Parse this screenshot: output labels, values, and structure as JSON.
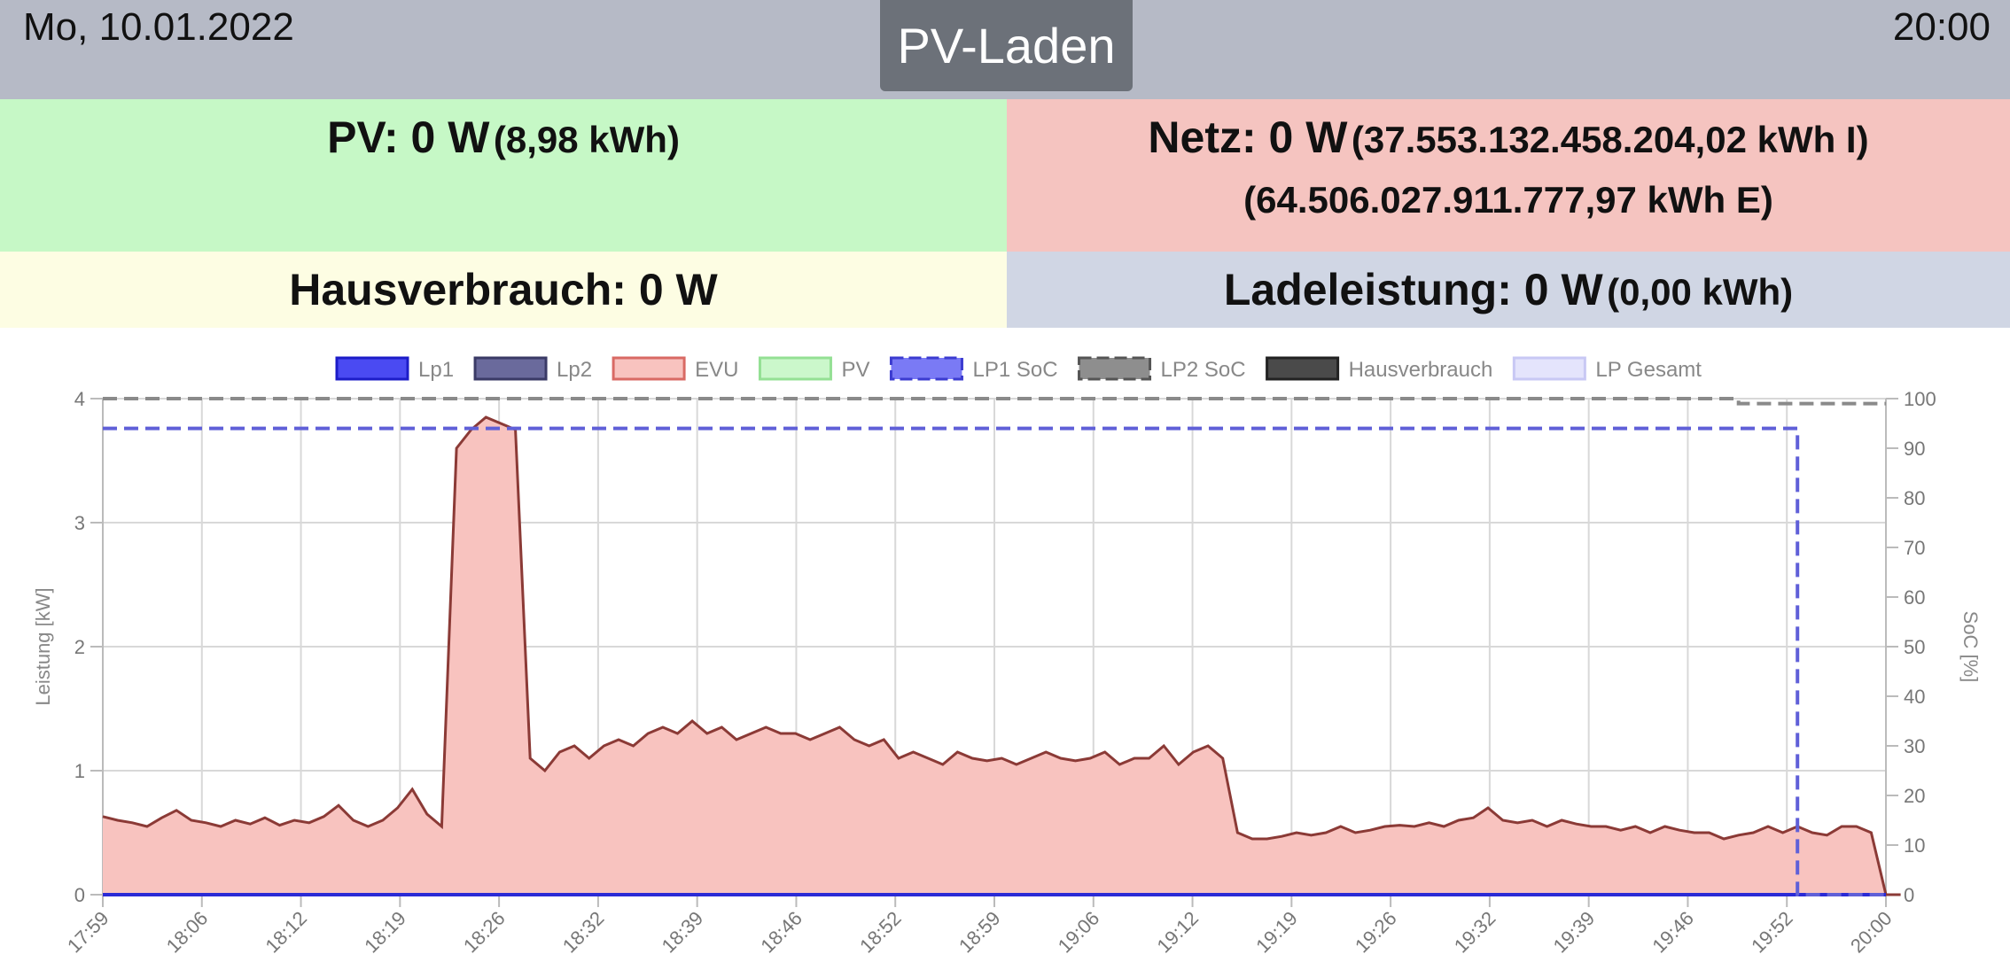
{
  "header": {
    "date": "Mo, 10.01.2022",
    "time": "20:00",
    "mode_button": "PV-Laden"
  },
  "pv": {
    "label": "PV: 0 W",
    "energy": "(8,98 kWh)"
  },
  "grid": {
    "label": "Netz: 0 W",
    "import": "(37.553.132.458.204,02 kWh I)",
    "export": "(64.506.027.911.777,97 kWh E)"
  },
  "house": {
    "label": "Hausverbrauch: 0 W"
  },
  "charging": {
    "label": "Ladeleistung: 0 W",
    "energy": "(0,00 kWh)"
  },
  "colors": {
    "pv_bg": "#c6f8c6",
    "grid_bg": "#f5c4c0",
    "house_bg": "#fdfde3",
    "charge_bg": "#d0d6e4",
    "evu_fill": "#f8c3bf",
    "evu_line": "#8b3a36",
    "lp1": "#2b2bd6",
    "lp2_soc": "#8a8a8a",
    "lp1_soc": "#6060d8"
  },
  "chart_data": {
    "type": "line",
    "legend": [
      {
        "name": "Lp1",
        "fill": "#4a4af2",
        "stroke": "#1c1cc8",
        "dashed": false
      },
      {
        "name": "Lp2",
        "fill": "#6a6a9c",
        "stroke": "#3a3a66",
        "dashed": false
      },
      {
        "name": "EVU",
        "fill": "#f8c3bf",
        "stroke": "#d96a64",
        "dashed": false
      },
      {
        "name": "PV",
        "fill": "#cbf7cb",
        "stroke": "#94e094",
        "dashed": false
      },
      {
        "name": "LP1 SoC",
        "fill": "#7a7af5",
        "stroke": "#3c3cd0",
        "dashed": true
      },
      {
        "name": "LP2 SoC",
        "fill": "#8e8e8e",
        "stroke": "#555555",
        "dashed": true
      },
      {
        "name": "Hausverbrauch",
        "fill": "#4a4a4a",
        "stroke": "#222222",
        "dashed": false
      },
      {
        "name": "LP Gesamt",
        "fill": "#e4e4fc",
        "stroke": "#c8c8f4",
        "dashed": false
      }
    ],
    "legend_position": "top",
    "ylabel": "Leistung [kW]",
    "y2label": "SoC [%]",
    "ylim": [
      0,
      4
    ],
    "y2lim": [
      0,
      100
    ],
    "yticks": [
      "0",
      "1",
      "2",
      "3",
      "4"
    ],
    "y2ticks": [
      "0",
      "10",
      "20",
      "30",
      "40",
      "50",
      "60",
      "70",
      "80",
      "90",
      "100"
    ],
    "x_range": [
      "17:59",
      "20:00"
    ],
    "xticks": [
      "17:59",
      "18:06",
      "18:12",
      "18:19",
      "18:26",
      "18:32",
      "18:39",
      "18:46",
      "18:52",
      "18:59",
      "19:06",
      "19:12",
      "19:19",
      "19:26",
      "19:32",
      "19:39",
      "19:46",
      "19:52",
      "20:00"
    ],
    "grid": true,
    "series": [
      {
        "name": "EVU",
        "comment": "grid power in kW, sampled every minute from 17:59",
        "x_start": "17:59",
        "x_step_min": 1,
        "values": [
          0.63,
          0.6,
          0.58,
          0.55,
          0.62,
          0.68,
          0.6,
          0.58,
          0.55,
          0.6,
          0.57,
          0.62,
          0.56,
          0.6,
          0.58,
          0.63,
          0.72,
          0.6,
          0.55,
          0.6,
          0.7,
          0.85,
          0.65,
          0.55,
          3.6,
          3.75,
          3.85,
          3.8,
          3.75,
          1.1,
          1.0,
          1.15,
          1.2,
          1.1,
          1.2,
          1.25,
          1.2,
          1.3,
          1.35,
          1.3,
          1.4,
          1.3,
          1.35,
          1.25,
          1.3,
          1.35,
          1.3,
          1.3,
          1.25,
          1.3,
          1.35,
          1.25,
          1.2,
          1.25,
          1.1,
          1.15,
          1.1,
          1.05,
          1.15,
          1.1,
          1.08,
          1.1,
          1.05,
          1.1,
          1.15,
          1.1,
          1.08,
          1.1,
          1.15,
          1.05,
          1.1,
          1.1,
          1.2,
          1.05,
          1.15,
          1.2,
          1.1,
          0.5,
          0.45,
          0.45,
          0.47,
          0.5,
          0.48,
          0.5,
          0.55,
          0.5,
          0.52,
          0.55,
          0.56,
          0.55,
          0.58,
          0.55,
          0.6,
          0.62,
          0.7,
          0.6,
          0.58,
          0.6,
          0.55,
          0.6,
          0.57,
          0.55,
          0.55,
          0.52,
          0.55,
          0.5,
          0.55,
          0.52,
          0.5,
          0.5,
          0.45,
          0.48,
          0.5,
          0.55,
          0.5,
          0.55,
          0.5,
          0.48,
          0.55,
          0.55,
          0.5,
          0.0,
          0.0
        ]
      },
      {
        "name": "Lp1",
        "x_start": "17:59",
        "x_end": "20:00",
        "values": [
          0,
          0
        ]
      },
      {
        "name": "LP1 SoC",
        "x": [
          "17:59",
          "19:54",
          "19:54",
          "20:00"
        ],
        "values": [
          94,
          94,
          0,
          0
        ]
      },
      {
        "name": "LP2 SoC",
        "x": [
          "17:59",
          "19:50",
          "19:50",
          "19:54",
          "19:55",
          "20:00"
        ],
        "values": [
          100,
          100,
          99,
          99,
          99,
          99
        ]
      }
    ]
  }
}
